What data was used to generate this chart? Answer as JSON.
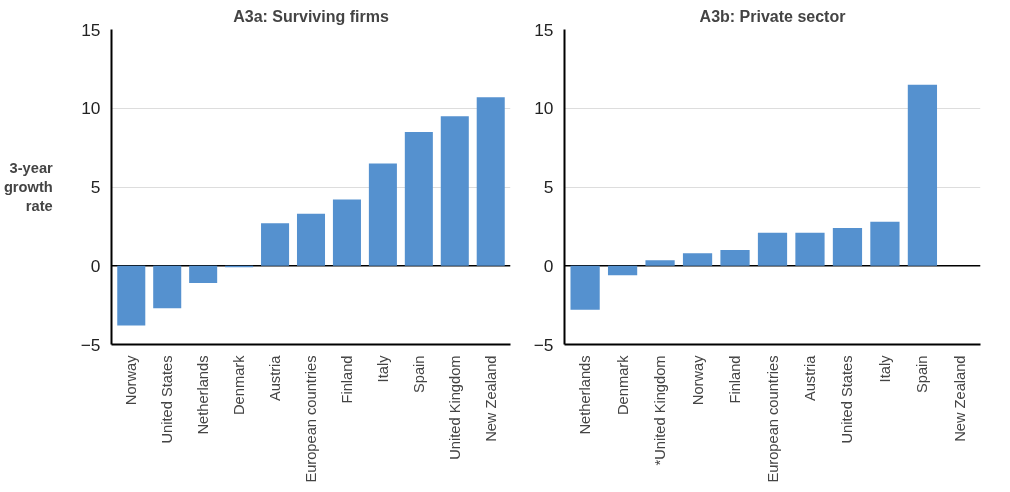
{
  "chart_data": [
    {
      "type": "bar",
      "title": "A3a: Surviving firms",
      "ylabel": "3-year growth rate",
      "categories": [
        "Norway",
        "United States",
        "Netherlands",
        "Denmark",
        "Austria",
        "European countries",
        "Finland",
        "Italy",
        "Spain",
        "United Kingdom",
        "New Zealand"
      ],
      "values": [
        -3.8,
        -2.7,
        -1.1,
        -0.1,
        2.7,
        3.3,
        4.2,
        6.5,
        8.5,
        9.5,
        10.7
      ],
      "color": "#5591cf",
      "ylim": [
        -5,
        15
      ],
      "yticks": [
        -5,
        0,
        5,
        10,
        15
      ],
      "grid": "y",
      "ref_lines": [
        {
          "axis": "y",
          "value": 0,
          "color": "#000000"
        }
      ]
    },
    {
      "type": "bar",
      "title": "A3b: Private sector",
      "categories": [
        "Netherlands",
        "Denmark",
        "*United Kingdom",
        "Norway",
        "Finland",
        "European countries",
        "Austria",
        "United States",
        "Italy",
        "Spain",
        "New Zealand"
      ],
      "values": [
        -2.8,
        -0.6,
        0.35,
        0.8,
        1.0,
        2.1,
        2.1,
        2.4,
        2.8,
        11.5,
        null
      ],
      "color": "#5591cf",
      "ylim": [
        -5,
        15
      ],
      "yticks": [
        -5,
        0,
        5,
        10,
        15
      ],
      "grid": "y",
      "ref_lines": [
        {
          "axis": "y",
          "value": 0,
          "color": "#000000"
        }
      ]
    }
  ]
}
